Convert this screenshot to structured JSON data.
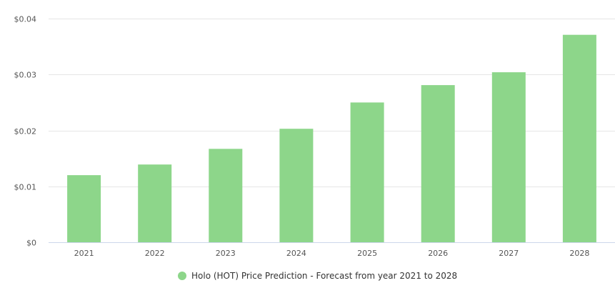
{
  "chart_data": {
    "type": "bar",
    "title": "",
    "xlabel": "",
    "ylabel": "",
    "categories": [
      "2021",
      "2022",
      "2023",
      "2024",
      "2025",
      "2026",
      "2027",
      "2028"
    ],
    "series": [
      {
        "name": "Holo (HOT) Price Prediction - Forecast from year 2021 to 2028",
        "values": [
          0.012,
          0.0139,
          0.0167,
          0.0203,
          0.025,
          0.0281,
          0.0304,
          0.0371
        ],
        "color": "#8dd68a"
      }
    ],
    "ylim": [
      0,
      0.04
    ],
    "yticks": [
      0,
      0.01,
      0.02,
      0.03,
      0.04
    ],
    "ytick_labels": [
      "$0",
      "$0.01",
      "$0.02",
      "$0.03",
      "$0.04"
    ],
    "grid": true,
    "legend": "bottom-center"
  }
}
